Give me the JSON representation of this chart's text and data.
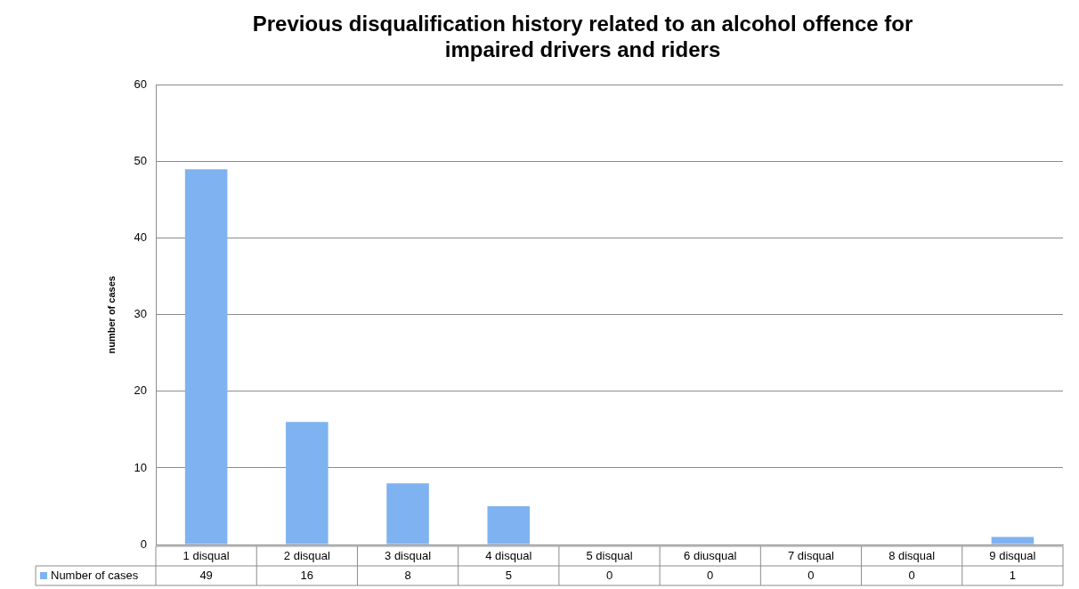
{
  "chart_data": {
    "type": "bar",
    "title": "Previous disqualification history related to an alcohol offence for impaired drivers and riders",
    "ylabel": "number of cases",
    "categories": [
      "1 disqual",
      "2 disqual",
      "3 disqual",
      "4 disqual",
      "5 disqual",
      "6 diusqual",
      "7 disqual",
      "8 disqual",
      "9 disqual"
    ],
    "series": [
      {
        "name": "Number of cases",
        "color": "#7fb2f0",
        "values": [
          49,
          16,
          8,
          5,
          0,
          0,
          0,
          0,
          1
        ]
      }
    ],
    "ylim": [
      0,
      60
    ],
    "yticks": [
      0,
      10,
      20,
      30,
      40,
      50,
      60
    ],
    "grid": "y",
    "legend": "bottom left",
    "data_labels": true
  }
}
